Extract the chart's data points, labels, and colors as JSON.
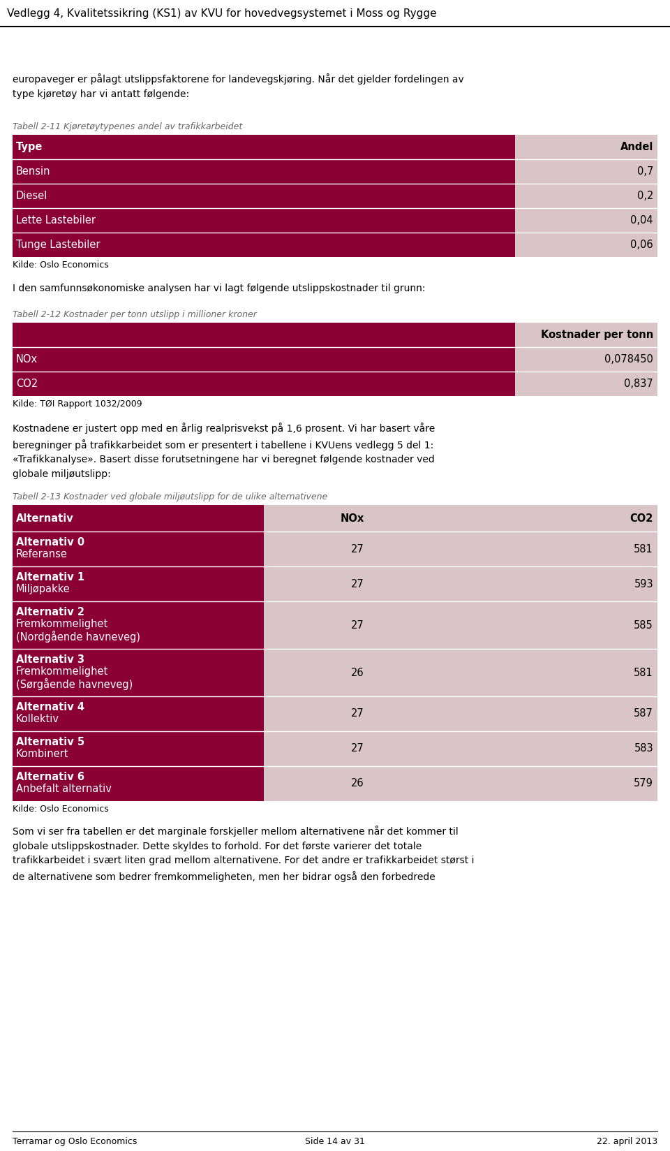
{
  "page_header": "Vedlegg 4, Kvalitetssikring (KS1) av KVU for hovedvegsystemet i Moss og Rygge",
  "body_text_1": "europaveger er pålagt utslippsfaktorene for landevegskjøring. Når det gjelder fordelingen av\ntype kjøretøy har vi antatt følgende:",
  "table1_caption": "Tabell 2-11 Kjøretøytypenes andel av trafikkarbeidet",
  "table1_header": [
    "Type",
    "Andel"
  ],
  "table1_rows": [
    [
      "Bensin",
      "0,7"
    ],
    [
      "Diesel",
      "0,2"
    ],
    [
      "Lette Lastebiler",
      "0,04"
    ],
    [
      "Tunge Lastebiler",
      "0,06"
    ]
  ],
  "table1_source": "Kilde: Oslo Economics",
  "body_text_2": "I den samfunnsøkonomiske analysen har vi lagt følgende utslippskostnader til grunn:",
  "table2_caption": "Tabell 2-12 Kostnader per tonn utslipp i millioner kroner",
  "table2_header": [
    "",
    "Kostnader per tonn"
  ],
  "table2_rows": [
    [
      "NOx",
      "0,078450"
    ],
    [
      "CO2",
      "0,837"
    ]
  ],
  "table2_source": "Kilde: TØI Rapport 1032/2009",
  "body_text_3": "Kostnadene er justert opp med en årlig realprisvekst på 1,6 prosent. Vi har basert våre\nberegninger på trafikkarbeidet som er presentert i tabellene i KVUens vedlegg 5 del 1:\n«Trafikkanalyse». Basert disse forutsetningene har vi beregnet følgende kostnader ved\nglobale miljøutslipp:",
  "table3_caption": "Tabell 2-13 Kostnader ved globale miljøutslipp for de ulike alternativene",
  "table3_header": [
    "Alternativ",
    "NOx",
    "CO2"
  ],
  "table3_rows": [
    [
      "Alternativ 0",
      "Referanse",
      "27",
      "581"
    ],
    [
      "Alternativ 1",
      "Miljøpakke",
      "27",
      "593"
    ],
    [
      "Alternativ 2",
      "Fremkommelighet\n(Nordgående havneveg)",
      "27",
      "585"
    ],
    [
      "Alternativ 3",
      "Fremkommelighet\n(Sørgående havneveg)",
      "26",
      "581"
    ],
    [
      "Alternativ 4",
      "Kollektiv",
      "27",
      "587"
    ],
    [
      "Alternativ 5",
      "Kombinert",
      "27",
      "583"
    ],
    [
      "Alternativ 6",
      "Anbefalt alternativ",
      "26",
      "579"
    ]
  ],
  "table3_source": "Kilde: Oslo Economics",
  "body_text_4": "Som vi ser fra tabellen er det marginale forskjeller mellom alternativene når det kommer til\nglobale utslippskostnader. Dette skyldes to forhold. For det første varierer det totale\ntrafikkarbeidet i svært liten grad mellom alternativene. For det andre er trafikkarbeidet størst i\nde alternativene som bedrer fremkommeligheten, men her bidrar også den forbedrede",
  "footer_left": "Terramar og Oslo Economics",
  "footer_center": "Side 14 av 31",
  "footer_right": "22. april 2013",
  "dark_red": "#8B0032",
  "light_pink": "#D9C5C8",
  "white": "#FFFFFF",
  "black": "#000000",
  "bg_color": "#FFFFFF"
}
